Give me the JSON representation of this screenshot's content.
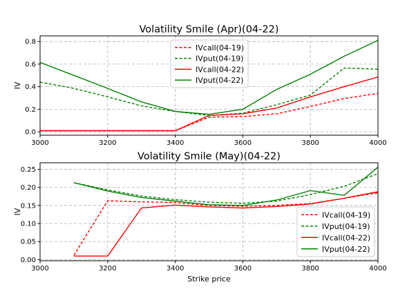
{
  "chart_data": [
    {
      "type": "line",
      "title": "Volatility Smile (Apr)(04-22)",
      "xlabel": "",
      "ylabel": "IV",
      "xlim": [
        3000,
        4000
      ],
      "ylim": [
        -0.03,
        0.85
      ],
      "xticks": [
        3000,
        3200,
        3400,
        3600,
        3800,
        4000
      ],
      "yticks": [
        0.0,
        0.2,
        0.4,
        0.6,
        0.8
      ],
      "ytick_labels": [
        "0.0",
        "0.2",
        "0.4",
        "0.6",
        "0.8"
      ],
      "grid": true,
      "legend_position": "top-center",
      "series": [
        {
          "name": "IVcall(04-19)",
          "color": "#ff0000",
          "dash": true,
          "x": [
            3000,
            3100,
            3200,
            3300,
            3400,
            3500,
            3600,
            3700,
            3800,
            3900,
            4000
          ],
          "y": [
            0.01,
            0.01,
            0.01,
            0.01,
            0.01,
            0.13,
            0.135,
            0.16,
            0.225,
            0.295,
            0.34
          ]
        },
        {
          "name": "IVput(04-19)",
          "color": "#008000",
          "dash": true,
          "x": [
            3000,
            3100,
            3200,
            3300,
            3400,
            3500,
            3600,
            3700,
            3800,
            3900,
            4000
          ],
          "y": [
            0.44,
            0.385,
            0.31,
            0.23,
            0.18,
            0.145,
            0.165,
            0.24,
            0.325,
            0.565,
            0.555
          ]
        },
        {
          "name": "IVcall(04-22)",
          "color": "#ff0000",
          "dash": false,
          "x": [
            3000,
            3100,
            3200,
            3300,
            3400,
            3500,
            3600,
            3700,
            3800,
            3900,
            4000
          ],
          "y": [
            0.01,
            0.01,
            0.01,
            0.01,
            0.01,
            0.145,
            0.16,
            0.21,
            0.31,
            0.4,
            0.485
          ]
        },
        {
          "name": "IVput(04-22)",
          "color": "#008000",
          "dash": false,
          "x": [
            3000,
            3100,
            3200,
            3300,
            3400,
            3500,
            3600,
            3700,
            3800,
            3900,
            4000
          ],
          "y": [
            0.615,
            0.5,
            0.385,
            0.265,
            0.18,
            0.155,
            0.2,
            0.375,
            0.51,
            0.67,
            0.81
          ]
        }
      ]
    },
    {
      "type": "line",
      "title": "Volatility Smile (May)(04-22)",
      "xlabel": "Strike price",
      "ylabel": "IV",
      "xlim": [
        3000,
        4000
      ],
      "ylim": [
        -0.003,
        0.268
      ],
      "xticks": [
        3000,
        3200,
        3400,
        3600,
        3800,
        4000
      ],
      "yticks": [
        0.0,
        0.05,
        0.1,
        0.15,
        0.2,
        0.25
      ],
      "ytick_labels": [
        "0.00",
        "0.05",
        "0.10",
        "0.15",
        "0.20",
        "0.25"
      ],
      "grid": true,
      "legend_position": "center-right",
      "series": [
        {
          "name": "IVcall(04-19)",
          "color": "#ff0000",
          "dash": true,
          "x": [
            3100,
            3200,
            3300,
            3400,
            3500,
            3600,
            3700,
            3800,
            3900,
            4000
          ],
          "y": [
            0.012,
            0.163,
            0.16,
            0.158,
            0.15,
            0.148,
            0.15,
            0.155,
            0.17,
            0.185
          ]
        },
        {
          "name": "IVput(04-19)",
          "color": "#008000",
          "dash": true,
          "x": [
            3100,
            3200,
            3300,
            3400,
            3500,
            3600,
            3700,
            3800,
            3900,
            4000
          ],
          "y": [
            0.213,
            0.193,
            0.176,
            0.166,
            0.159,
            0.156,
            0.162,
            0.18,
            0.203,
            0.238
          ]
        },
        {
          "name": "IVcall(04-22)",
          "color": "#ff0000",
          "dash": false,
          "x": [
            3100,
            3200,
            3300,
            3400,
            3500,
            3600,
            3700,
            3800,
            3900,
            4000
          ],
          "y": [
            0.01,
            0.01,
            0.143,
            0.151,
            0.146,
            0.143,
            0.147,
            0.154,
            0.17,
            0.188
          ]
        },
        {
          "name": "IVput(04-22)",
          "color": "#008000",
          "dash": false,
          "x": [
            3100,
            3200,
            3300,
            3400,
            3500,
            3600,
            3700,
            3800,
            3900,
            4000
          ],
          "y": [
            0.213,
            0.19,
            0.172,
            0.162,
            0.152,
            0.15,
            0.165,
            0.191,
            0.178,
            0.256
          ]
        }
      ]
    }
  ]
}
